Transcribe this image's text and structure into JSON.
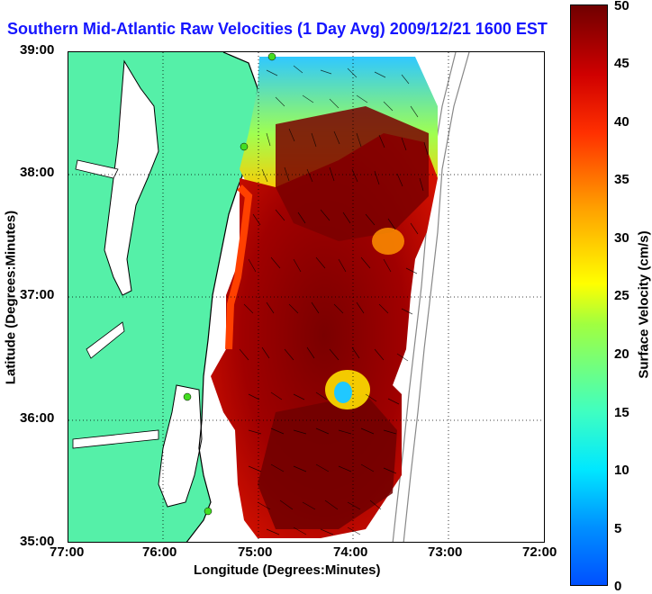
{
  "title": "Southern Mid-Atlantic Raw Velocities (1 Day Avg) 2009/12/21 1600 EST",
  "xlabel": "Longitude (Degrees:Minutes)",
  "ylabel": "Latitude (Degrees:Minutes)",
  "x_ticks": [
    "77:00",
    "76:00",
    "75:00",
    "74:00",
    "73:00",
    "72:00"
  ],
  "y_ticks": [
    "39:00",
    "38:00",
    "37:00",
    "36:00",
    "35:00"
  ],
  "colorbar": {
    "label": "Surface Velocity (cm/s)",
    "ticks": [
      "0",
      "5",
      "10",
      "15",
      "20",
      "25",
      "30",
      "35",
      "40",
      "45",
      "50"
    ],
    "min": 0,
    "max": 50
  },
  "colors": {
    "land": "#55f0a8",
    "water": "#ffffff",
    "title": "#1515ff",
    "station": "#44dd22"
  }
}
